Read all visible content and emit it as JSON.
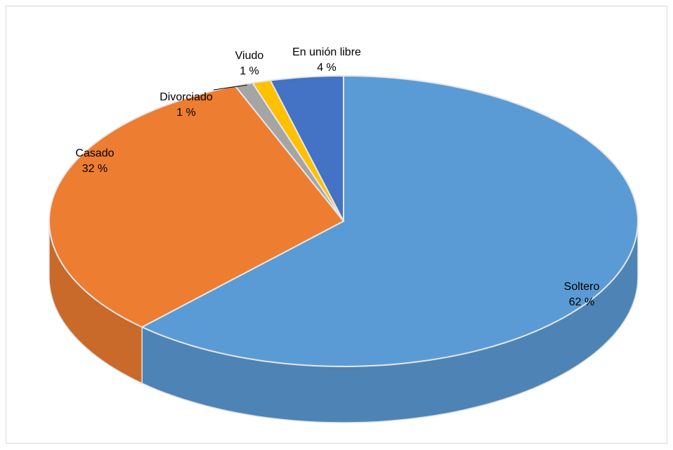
{
  "chart_data": {
    "type": "pie",
    "categories": [
      "Soltero",
      "Casado",
      "Divorciado",
      "Viudo",
      "En unión libre"
    ],
    "values": [
      62,
      32,
      1,
      1,
      4
    ],
    "value_labels": [
      "62 %",
      "32 %",
      "1 %",
      "1 %",
      "4 %"
    ],
    "colors": [
      "#5b9bd5",
      "#ed7d31",
      "#a5a5a5",
      "#ffc000",
      "#4472c4"
    ]
  }
}
